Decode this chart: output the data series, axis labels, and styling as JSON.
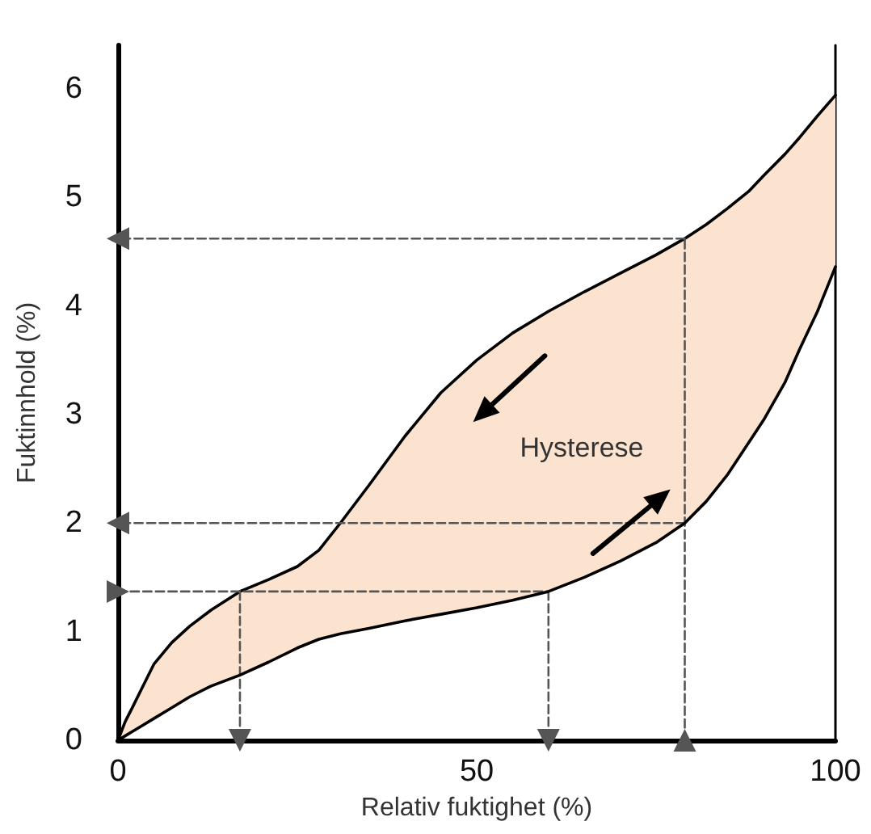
{
  "chart_data": {
    "type": "line",
    "xlabel": "Relativ fuktighet (%)",
    "ylabel": "Fuktinnhold (%)",
    "xlim": [
      0,
      100
    ],
    "xticks": [
      0,
      50,
      100
    ],
    "ylim": [
      0,
      6.4
    ],
    "yticks": [
      0,
      1,
      2,
      3,
      4,
      5,
      6
    ],
    "grid": false,
    "series": [
      {
        "color": "#000000",
        "x": [
          0,
          1,
          2,
          3.5,
          5,
          7.5,
          10,
          13,
          17,
          21,
          25,
          28,
          31,
          35,
          40,
          45,
          50,
          55,
          60,
          65,
          70,
          75,
          79,
          82,
          85,
          88,
          90,
          93,
          95,
          97.5,
          100
        ],
        "values": [
          0,
          0.04,
          0.08,
          0.14,
          0.2,
          0.3,
          0.4,
          0.5,
          0.6,
          0.72,
          0.85,
          0.93,
          0.98,
          1.03,
          1.1,
          1.16,
          1.22,
          1.29,
          1.37,
          1.5,
          1.65,
          1.82,
          2,
          2.2,
          2.45,
          2.75,
          2.95,
          3.3,
          3.6,
          3.95,
          4.36
        ]
      },
      {
        "type": "area",
        "color": "#fce3cf",
        "x": [
          0,
          1,
          2,
          3.5,
          5,
          7.5,
          10,
          13,
          17,
          21,
          25,
          28,
          31,
          35,
          40,
          45,
          50,
          55,
          60,
          65,
          70,
          75,
          79,
          82,
          85,
          88,
          90,
          93,
          95,
          97.5,
          100
        ],
        "values": [
          0,
          0.17,
          0.3,
          0.5,
          0.7,
          0.9,
          1.05,
          1.2,
          1.37,
          1.48,
          1.6,
          1.75,
          2,
          2.35,
          2.8,
          3.2,
          3.5,
          3.75,
          3.95,
          4.13,
          4.3,
          4.47,
          4.62,
          4.75,
          4.9,
          5.06,
          5.2,
          5.4,
          5.55,
          5.75,
          5.94
        ]
      },
      {
        "color": "#555555",
        "line_style": "dashed",
        "marker": "triangle",
        "x": [
          79,
          0
        ],
        "values": [
          4.62,
          4.62
        ]
      },
      {
        "color": "#555555",
        "line_style": "dashed",
        "marker": "triangle",
        "x": [
          79,
          0
        ],
        "values": [
          2,
          2
        ]
      },
      {
        "color": "#555555",
        "line_style": "dashed",
        "marker": "triangle",
        "x": [
          0,
          60
        ],
        "values": [
          1.37,
          1.37
        ]
      },
      {
        "color": "#555555",
        "line_style": "dashed",
        "marker": "triangle",
        "x": [
          17,
          17
        ],
        "values": [
          1.37,
          0
        ]
      },
      {
        "color": "#555555",
        "line_style": "dashed",
        "marker": "triangle",
        "x": [
          60,
          60
        ],
        "values": [
          1.37,
          0
        ]
      },
      {
        "color": "#555555",
        "line_style": "dashed",
        "marker": "triangle",
        "x": [
          79,
          79
        ],
        "values": [
          0,
          4.62
        ]
      }
    ],
    "annotations": [
      "Hysterese"
    ]
  }
}
